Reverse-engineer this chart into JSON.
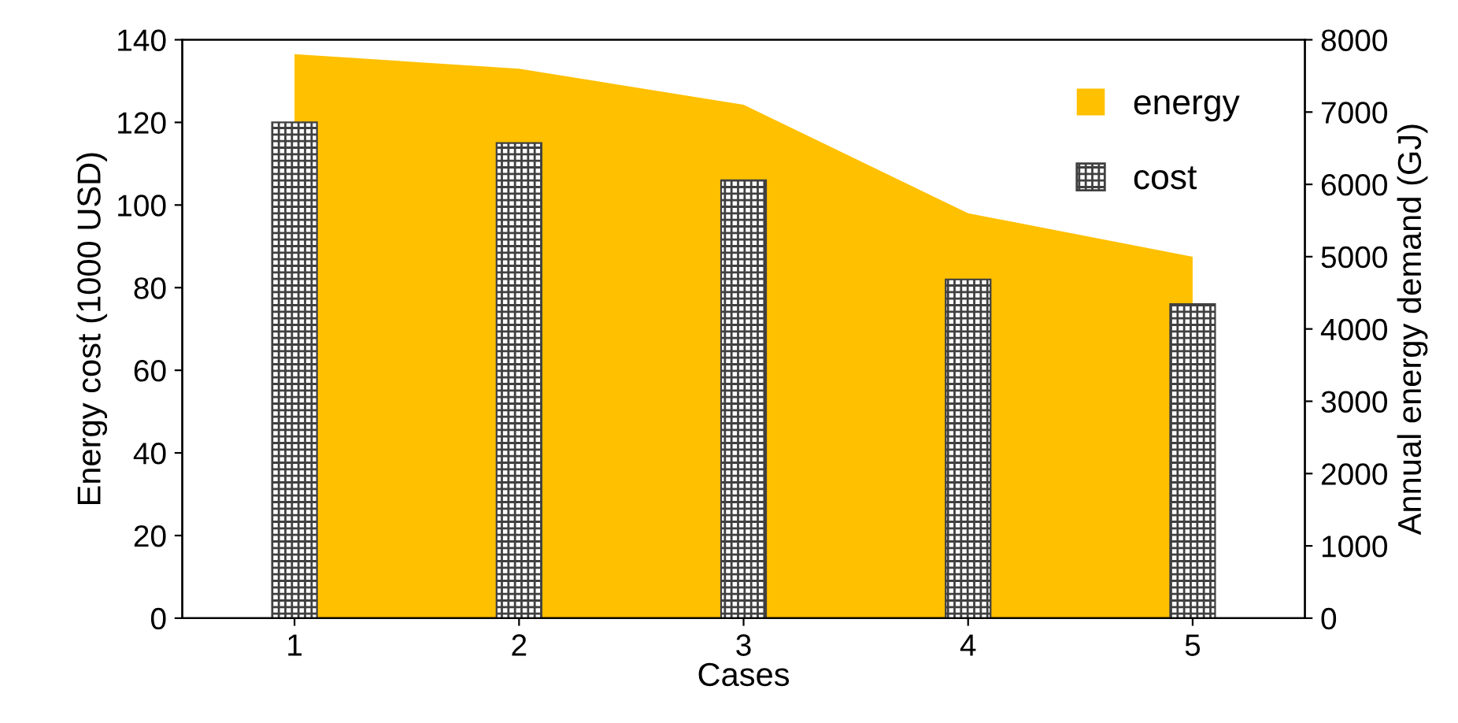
{
  "chart_data": {
    "type": "bar",
    "xlabel": "Cases",
    "ylabel": "Energy cost (1000 USD)",
    "y2label": "Annual energy demand (GJ)",
    "categories": [
      "1",
      "2",
      "3",
      "4",
      "5"
    ],
    "series": [
      {
        "name": "energy",
        "type": "area",
        "axis": "y2",
        "color": "#ffc000",
        "values": [
          7800,
          7600,
          7100,
          5600,
          5000
        ]
      },
      {
        "name": "cost",
        "color": "#404040",
        "values": [
          120,
          115,
          106,
          82,
          76
        ]
      }
    ],
    "ylim": [
      0,
      140
    ],
    "yticks": [
      0,
      20,
      40,
      60,
      80,
      100,
      120,
      140
    ],
    "y2lim": [
      0,
      8000
    ],
    "y2ticks": [
      0,
      1000,
      2000,
      3000,
      4000,
      5000,
      6000,
      7000,
      8000
    ],
    "legend": "top right",
    "grid": false
  }
}
